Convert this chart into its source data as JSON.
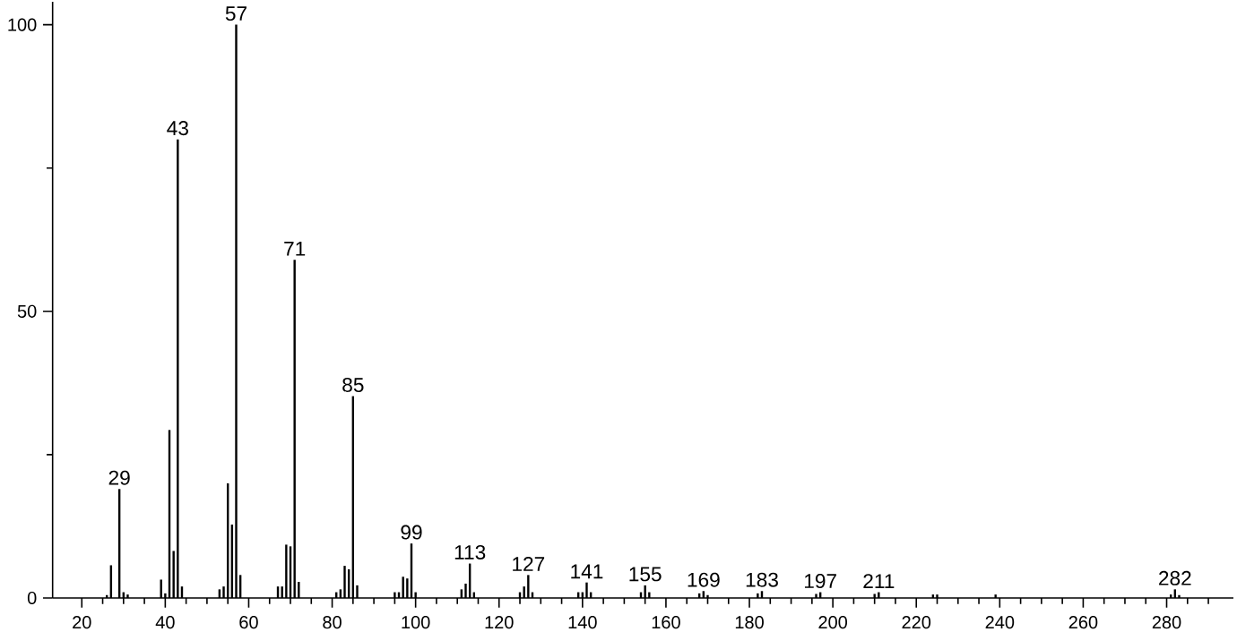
{
  "chart_data": {
    "type": "bar",
    "color": "#000000",
    "x": [
      26,
      27,
      29,
      30,
      31,
      39,
      40,
      41,
      42,
      43,
      44,
      53,
      54,
      55,
      56,
      57,
      58,
      67,
      68,
      69,
      70,
      71,
      72,
      81,
      82,
      83,
      84,
      85,
      86,
      95,
      96,
      97,
      98,
      99,
      100,
      111,
      112,
      113,
      114,
      125,
      126,
      127,
      128,
      139,
      140,
      141,
      142,
      154,
      155,
      156,
      168,
      169,
      170,
      182,
      183,
      196,
      197,
      210,
      211,
      224,
      225,
      239,
      281,
      282,
      283
    ],
    "values": [
      0.5,
      5.7,
      19,
      1,
      0.6,
      3.2,
      0.8,
      29.3,
      8.2,
      80,
      2,
      1.5,
      2,
      20,
      12.8,
      100,
      4,
      2,
      2,
      9.3,
      9,
      59,
      2.8,
      1,
      1.5,
      5.6,
      5,
      35.2,
      2.2,
      1,
      1,
      3.7,
      3.4,
      9.5,
      1,
      1.5,
      2.5,
      6,
      1,
      1,
      2,
      4,
      1,
      1,
      1,
      2.7,
      1,
      1,
      2.2,
      1,
      0.8,
      1.2,
      0.5,
      0.8,
      1.2,
      0.7,
      1,
      0.7,
      1,
      0.6,
      0.6,
      0.6,
      0.6,
      1.5,
      0.5
    ],
    "xlim": [
      13,
      296
    ],
    "ylim": [
      0,
      104
    ],
    "xticks": [
      20,
      {
        "value": 25,
        "label": null
      },
      {
        "value": 30,
        "label": null
      },
      {
        "value": 35,
        "label": null
      },
      40,
      {
        "value": 45,
        "label": null
      },
      {
        "value": 50,
        "label": null
      },
      {
        "value": 55,
        "label": null
      },
      60,
      {
        "value": 65,
        "label": null
      },
      {
        "value": 70,
        "label": null
      },
      {
        "value": 75,
        "label": null
      },
      80,
      {
        "value": 85,
        "label": null
      },
      {
        "value": 90,
        "label": null
      },
      {
        "value": 95,
        "label": null
      },
      100,
      {
        "value": 105,
        "label": null
      },
      {
        "value": 110,
        "label": null
      },
      {
        "value": 115,
        "label": null
      },
      120,
      {
        "value": 125,
        "label": null
      },
      {
        "value": 130,
        "label": null
      },
      {
        "value": 135,
        "label": null
      },
      140,
      {
        "value": 145,
        "label": null
      },
      {
        "value": 150,
        "label": null
      },
      {
        "value": 155,
        "label": null
      },
      160,
      {
        "value": 165,
        "label": null
      },
      {
        "value": 170,
        "label": null
      },
      {
        "value": 175,
        "label": null
      },
      180,
      {
        "value": 185,
        "label": null
      },
      {
        "value": 190,
        "label": null
      },
      {
        "value": 195,
        "label": null
      },
      200,
      {
        "value": 205,
        "label": null
      },
      {
        "value": 210,
        "label": null
      },
      {
        "value": 215,
        "label": null
      },
      220,
      {
        "value": 225,
        "label": null
      },
      {
        "value": 230,
        "label": null
      },
      {
        "value": 235,
        "label": null
      },
      240,
      {
        "value": 245,
        "label": null
      },
      {
        "value": 250,
        "label": null
      },
      {
        "value": 255,
        "label": null
      },
      260,
      {
        "value": 265,
        "label": null
      },
      {
        "value": 270,
        "label": null
      },
      {
        "value": 275,
        "label": null
      },
      280,
      {
        "value": 285,
        "label": null
      },
      {
        "value": 290,
        "label": null
      }
    ],
    "yticks": [
      0,
      {
        "value": 25,
        "label": null
      },
      50,
      {
        "value": 75,
        "label": null
      },
      100
    ],
    "annotations": [
      {
        "text": "29",
        "x": 29,
        "y": 19
      },
      {
        "text": "43",
        "x": 43,
        "y": 80
      },
      {
        "text": "57",
        "x": 57,
        "y": 100
      },
      {
        "text": "71",
        "x": 71,
        "y": 59
      },
      {
        "text": "85",
        "x": 85,
        "y": 35.2
      },
      {
        "text": "99",
        "x": 99,
        "y": 9.5
      },
      {
        "text": "113",
        "x": 113,
        "y": 6
      },
      {
        "text": "127",
        "x": 127,
        "y": 4
      },
      {
        "text": "141",
        "x": 141,
        "y": 2.7
      },
      {
        "text": "155",
        "x": 155,
        "y": 2.2
      },
      {
        "text": "169",
        "x": 169,
        "y": 1.2
      },
      {
        "text": "183",
        "x": 183,
        "y": 1.2
      },
      {
        "text": "197",
        "x": 197,
        "y": 1
      },
      {
        "text": "211",
        "x": 211,
        "y": 1
      },
      {
        "text": "282",
        "x": 282,
        "y": 1.5
      }
    ]
  }
}
